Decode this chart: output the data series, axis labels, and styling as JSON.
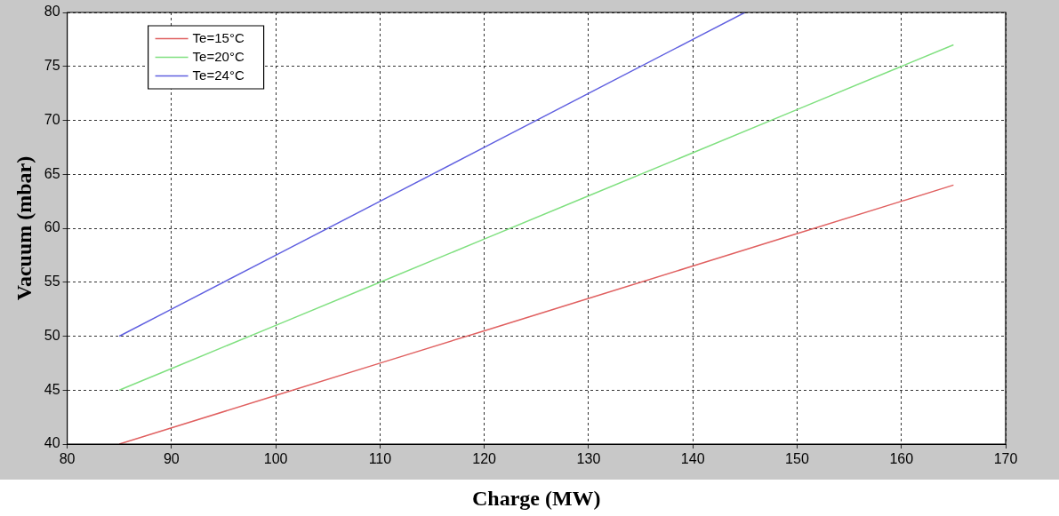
{
  "chart_data": {
    "type": "line",
    "xlabel": "Charge (MW)",
    "ylabel": "Vacuum (mbar)",
    "xlim": [
      80,
      170
    ],
    "xticks": [
      80,
      90,
      100,
      110,
      120,
      130,
      140,
      150,
      160,
      170
    ],
    "ylim": [
      40,
      80
    ],
    "yticks": [
      40,
      45,
      50,
      55,
      60,
      65,
      70,
      75,
      80
    ],
    "grid": true,
    "legend": "top left",
    "line_style": "solid",
    "marker": "none",
    "series": [
      {
        "name": "Te=15°C",
        "color": "#e06060",
        "x": [
          85,
          90,
          100,
          110,
          120,
          130,
          140,
          150,
          160,
          165
        ],
        "values": [
          40,
          41.5,
          44.5,
          47.5,
          50.5,
          53.5,
          56.5,
          59.5,
          62.5,
          64
        ]
      },
      {
        "name": "Te=20°C",
        "color": "#80e080",
        "x": [
          85,
          90,
          100,
          110,
          120,
          130,
          140,
          150,
          160,
          165
        ],
        "values": [
          45,
          47,
          51,
          55,
          59,
          63,
          67,
          71,
          75,
          77
        ]
      },
      {
        "name": "Te=24°C",
        "color": "#6060e0",
        "x": [
          85,
          90,
          100,
          110,
          120,
          130,
          140,
          145
        ],
        "values": [
          50,
          52.5,
          57.5,
          62.5,
          67.5,
          72.5,
          77.5,
          80
        ]
      }
    ]
  }
}
